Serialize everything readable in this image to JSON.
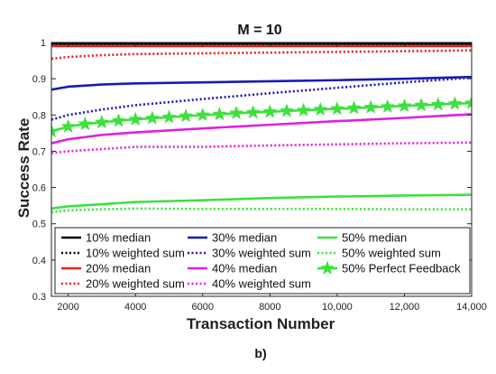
{
  "chart_data": {
    "type": "line",
    "title": "M = 10",
    "xlabel": "Transaction Number",
    "ylabel": "Success Rate",
    "caption": "b)",
    "xlim": [
      1500,
      14000
    ],
    "ylim": [
      0.3,
      1.0
    ],
    "xticks": [
      2000,
      4000,
      6000,
      8000,
      10000,
      12000,
      14000
    ],
    "xtick_labels": [
      "2000",
      "4000",
      "6000",
      "8000",
      "10,000",
      "12,000",
      "14,000"
    ],
    "yticks": [
      0.3,
      0.4,
      0.5,
      0.6,
      0.7,
      0.8,
      0.9,
      1.0
    ],
    "ytick_labels": [
      "0.3",
      "0.4",
      "0.5",
      "0.6",
      "0.7",
      "0.8",
      "0.9",
      "1"
    ],
    "grid": false,
    "legend_position": "bottom",
    "series": [
      {
        "name": "10% median",
        "color": "#000000",
        "style": "solid",
        "x": [
          1500,
          3000,
          6000,
          9000,
          12000,
          14000
        ],
        "y": [
          0.997,
          0.997,
          0.997,
          0.997,
          0.997,
          0.997
        ]
      },
      {
        "name": "10% weighted sum",
        "color": "#000000",
        "style": "dotted",
        "x": [
          1500,
          3000,
          6000,
          9000,
          12000,
          14000
        ],
        "y": [
          0.991,
          0.992,
          0.992,
          0.992,
          0.992,
          0.992
        ]
      },
      {
        "name": "20% median",
        "color": "#e8201a",
        "style": "solid",
        "x": [
          1500,
          3000,
          6000,
          9000,
          12000,
          14000
        ],
        "y": [
          0.99,
          0.99,
          0.99,
          0.99,
          0.99,
          0.99
        ]
      },
      {
        "name": "20% weighted sum",
        "color": "#e8201a",
        "style": "dotted",
        "x": [
          1500,
          2000,
          3000,
          4000,
          6000,
          8000,
          10000,
          12000,
          14000
        ],
        "y": [
          0.955,
          0.96,
          0.965,
          0.968,
          0.97,
          0.972,
          0.974,
          0.976,
          0.978
        ]
      },
      {
        "name": "30% median",
        "color": "#1a1ab4",
        "style": "solid",
        "x": [
          1500,
          2000,
          3000,
          4000,
          6000,
          8000,
          10000,
          12000,
          14000
        ],
        "y": [
          0.87,
          0.878,
          0.884,
          0.887,
          0.89,
          0.893,
          0.896,
          0.9,
          0.905
        ]
      },
      {
        "name": "30% weighted sum",
        "color": "#1a1ab4",
        "style": "dotted",
        "x": [
          1500,
          2000,
          3000,
          4000,
          6000,
          8000,
          10000,
          12000,
          14000
        ],
        "y": [
          0.787,
          0.8,
          0.815,
          0.827,
          0.844,
          0.86,
          0.875,
          0.89,
          0.903
        ]
      },
      {
        "name": "40% median",
        "color": "#e020e0",
        "style": "solid",
        "x": [
          1500,
          2000,
          3000,
          4000,
          6000,
          8000,
          10000,
          12000,
          14000
        ],
        "y": [
          0.722,
          0.733,
          0.745,
          0.752,
          0.763,
          0.773,
          0.783,
          0.792,
          0.802
        ]
      },
      {
        "name": "40% weighted sum",
        "color": "#e020e0",
        "style": "dotted",
        "x": [
          1500,
          2000,
          3000,
          4000,
          6000,
          8000,
          10000,
          12000,
          14000
        ],
        "y": [
          0.695,
          0.7,
          0.706,
          0.712,
          0.712,
          0.716,
          0.719,
          0.722,
          0.724
        ]
      },
      {
        "name": "50% median",
        "color": "#3de03d",
        "style": "solid",
        "x": [
          1500,
          2000,
          3000,
          4000,
          6000,
          8000,
          10000,
          12000,
          14000
        ],
        "y": [
          0.542,
          0.548,
          0.554,
          0.56,
          0.565,
          0.571,
          0.575,
          0.578,
          0.58
        ]
      },
      {
        "name": "50% weighted sum",
        "color": "#3de03d",
        "style": "dotted",
        "x": [
          1500,
          2000,
          3000,
          4000,
          6000,
          8000,
          10000,
          12000,
          14000
        ],
        "y": [
          0.532,
          0.537,
          0.54,
          0.542,
          0.541,
          0.541,
          0.541,
          0.54,
          0.54
        ]
      },
      {
        "name": "50% Perfect Feedback",
        "color": "#3de03d",
        "style": "solid-star",
        "x": [
          1500,
          2000,
          2500,
          3000,
          3500,
          4000,
          4500,
          5000,
          5500,
          6000,
          6500,
          7000,
          7500,
          8000,
          8500,
          9000,
          9500,
          10000,
          10500,
          11000,
          11500,
          12000,
          12500,
          13000,
          13500,
          14000
        ],
        "y": [
          0.755,
          0.768,
          0.775,
          0.78,
          0.784,
          0.788,
          0.791,
          0.794,
          0.797,
          0.8,
          0.802,
          0.805,
          0.807,
          0.809,
          0.811,
          0.813,
          0.815,
          0.817,
          0.819,
          0.821,
          0.823,
          0.825,
          0.827,
          0.829,
          0.831,
          0.833
        ]
      }
    ]
  }
}
